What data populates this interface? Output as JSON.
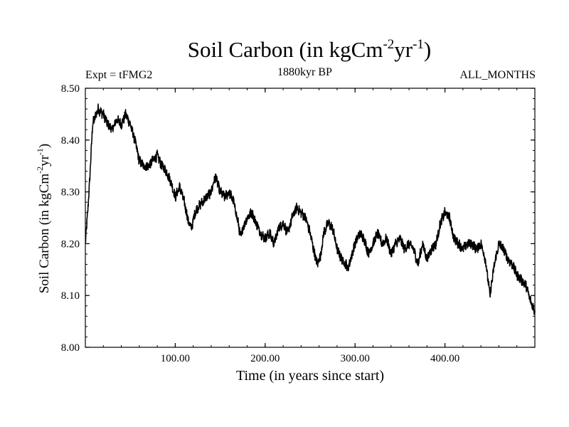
{
  "chart_data": {
    "type": "line",
    "title": {
      "main": "Soil Carbon (in kgCm",
      "exp1": "-2",
      "mid": "yr",
      "exp2": "-1",
      "end": ")"
    },
    "subtitle_left": "Expt = tFMG2",
    "subtitle_center": "1880kyr BP",
    "subtitle_right": "ALL_MONTHS",
    "xlabel": "Time (in years since start)",
    "ylabel": {
      "main": "Soil Carbon (in kgCm",
      "exp1": "-2",
      "mid": "yr",
      "exp2": "-1",
      "end": ")"
    },
    "xlim": [
      0,
      500
    ],
    "ylim": [
      8.0,
      8.5
    ],
    "x_ticks": [
      {
        "value": 100,
        "label": "100.00"
      },
      {
        "value": 200,
        "label": "200.00"
      },
      {
        "value": 300,
        "label": "300.00"
      },
      {
        "value": 400,
        "label": "400.00"
      }
    ],
    "y_ticks": [
      {
        "value": 8.0,
        "label": "8.00"
      },
      {
        "value": 8.1,
        "label": "8.10"
      },
      {
        "value": 8.2,
        "label": "8.20"
      },
      {
        "value": 8.3,
        "label": "8.30"
      },
      {
        "value": 8.4,
        "label": "8.40"
      },
      {
        "value": 8.5,
        "label": "8.50"
      }
    ],
    "series": [
      {
        "name": "Soil Carbon",
        "color": "#000000",
        "x": [
          0,
          3,
          6,
          8,
          10,
          14,
          20,
          25,
          30,
          35,
          40,
          45,
          50,
          55,
          60,
          65,
          70,
          75,
          80,
          85,
          90,
          95,
          100,
          105,
          110,
          115,
          118,
          122,
          125,
          130,
          135,
          140,
          143,
          145,
          148,
          150,
          155,
          160,
          165,
          170,
          173,
          175,
          180,
          185,
          190,
          195,
          200,
          205,
          210,
          215,
          220,
          225,
          230,
          235,
          240,
          245,
          250,
          255,
          258,
          262,
          265,
          270,
          275,
          280,
          285,
          290,
          292,
          295,
          300,
          305,
          310,
          315,
          320,
          325,
          330,
          335,
          340,
          345,
          350,
          355,
          360,
          365,
          370,
          375,
          380,
          385,
          390,
          395,
          400,
          405,
          410,
          415,
          420,
          425,
          430,
          435,
          440,
          445,
          450,
          455,
          460,
          465,
          470,
          475,
          480,
          485,
          490,
          495,
          500
        ],
        "values": [
          8.2,
          8.27,
          8.36,
          8.43,
          8.44,
          8.46,
          8.45,
          8.43,
          8.42,
          8.44,
          8.43,
          8.45,
          8.43,
          8.4,
          8.36,
          8.35,
          8.35,
          8.36,
          8.37,
          8.35,
          8.34,
          8.32,
          8.29,
          8.31,
          8.28,
          8.24,
          8.23,
          8.26,
          8.27,
          8.28,
          8.29,
          8.3,
          8.32,
          8.33,
          8.31,
          8.3,
          8.29,
          8.3,
          8.28,
          8.24,
          8.21,
          8.23,
          8.25,
          8.26,
          8.24,
          8.22,
          8.21,
          8.22,
          8.2,
          8.23,
          8.24,
          8.22,
          8.25,
          8.27,
          8.26,
          8.25,
          8.22,
          8.18,
          8.16,
          8.18,
          8.22,
          8.24,
          8.23,
          8.19,
          8.17,
          8.16,
          8.15,
          8.17,
          8.2,
          8.22,
          8.21,
          8.18,
          8.2,
          8.22,
          8.2,
          8.21,
          8.18,
          8.2,
          8.21,
          8.19,
          8.2,
          8.19,
          8.16,
          8.2,
          8.17,
          8.19,
          8.2,
          8.24,
          8.26,
          8.25,
          8.21,
          8.2,
          8.19,
          8.2,
          8.2,
          8.19,
          8.2,
          8.17,
          8.1,
          8.16,
          8.2,
          8.19,
          8.17,
          8.16,
          8.14,
          8.13,
          8.12,
          8.09,
          8.07
        ]
      }
    ]
  }
}
